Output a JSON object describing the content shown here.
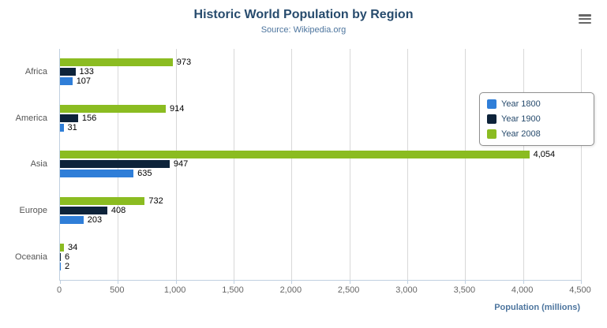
{
  "chart_data": {
    "type": "bar",
    "orientation": "horizontal",
    "title": "Historic World Population by Region",
    "subtitle": "Source: Wikipedia.org",
    "categories": [
      "Africa",
      "America",
      "Asia",
      "Europe",
      "Oceania"
    ],
    "series": [
      {
        "name": "Year 1800",
        "color": "#2f7ed8",
        "values": [
          107,
          31,
          635,
          203,
          2
        ]
      },
      {
        "name": "Year 1900",
        "color": "#0d233a",
        "values": [
          133,
          156,
          947,
          408,
          6
        ]
      },
      {
        "name": "Year 2008",
        "color": "#8bbc21",
        "values": [
          973,
          914,
          4054,
          732,
          34
        ]
      }
    ],
    "bar_order_top_to_bottom": [
      "Year 2008",
      "Year 1900",
      "Year 1800"
    ],
    "xlabel": "Population (millions)",
    "xlim": [
      0,
      4500
    ],
    "x_ticks": [
      0,
      500,
      1000,
      1500,
      2000,
      2500,
      3000,
      3500,
      4000,
      4500
    ],
    "x_tick_labels": [
      "0",
      "500",
      "1,000",
      "1,500",
      "2,000",
      "2,500",
      "3,000",
      "3,500",
      "4,000",
      "4,500"
    ],
    "grid": true,
    "legend_position": "right",
    "legend_items": [
      "Year 1800",
      "Year 1900",
      "Year 2008"
    ]
  },
  "icons": {
    "menu": "hamburger-menu-icon"
  },
  "colors": {
    "title": "#274b6d",
    "subtitle": "#4d759e",
    "gridline": "#d8d8d8",
    "axis_line": "#c0d0e0"
  }
}
